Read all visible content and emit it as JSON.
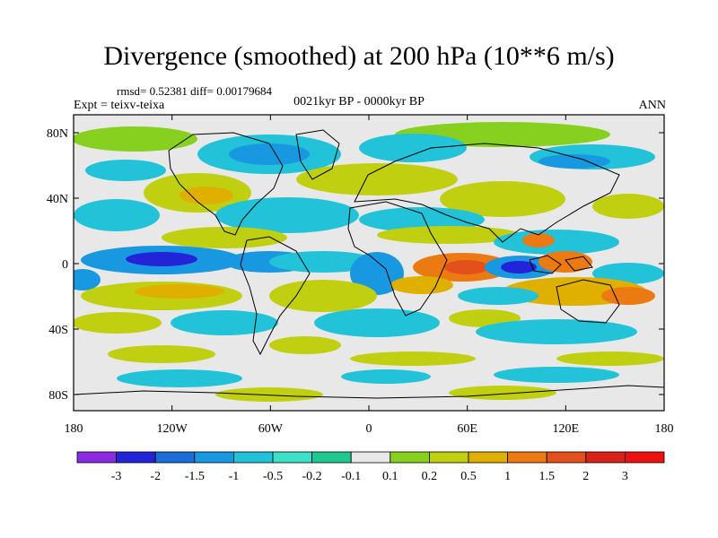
{
  "title": "Divergence (smoothed) at 200 hPa (10**6 m/s)",
  "stats": "rmsd= 0.52381 diff= 0.00179684",
  "experiment": "Expt = teixv-teixa",
  "period": "0021kyr BP - 0000kyr BP",
  "season": "ANN",
  "lat_ticks": [
    "80N",
    "40N",
    "0",
    "40S",
    "80S"
  ],
  "lon_ticks": [
    "180",
    "120W",
    "60W",
    "0",
    "60E",
    "120E",
    "180"
  ],
  "colorbar": {
    "labels": [
      "-3",
      "-2",
      "-1.5",
      "-1",
      "-0.5",
      "-0.2",
      "-0.1",
      "0.1",
      "0.2",
      "0.5",
      "1",
      "1.5",
      "2",
      "3"
    ],
    "colors": [
      "#8a2be2",
      "#2323d8",
      "#1a6fd6",
      "#1898e0",
      "#22c2d8",
      "#3fe0c8",
      "#20c890",
      "#e8e8e8",
      "#88d020",
      "#c0d010",
      "#e0b000",
      "#ec7a12",
      "#e4501c",
      "#d8221a",
      "#ee1111"
    ]
  }
}
